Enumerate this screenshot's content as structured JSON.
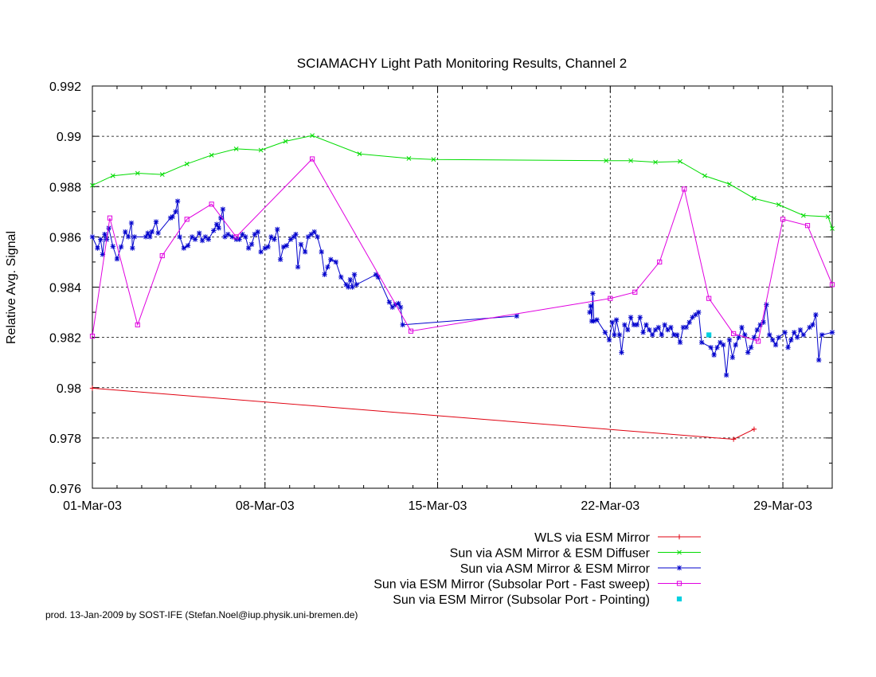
{
  "chart_data": {
    "type": "line",
    "title": "SCIAMACHY Light Path Monitoring Results, Channel 2",
    "xlabel": "",
    "ylabel": "Relative Avg. Signal",
    "x_unit": "date (2003)",
    "xlim": [
      "2003-03-01",
      "2003-03-31"
    ],
    "ylim": [
      0.976,
      0.992
    ],
    "x_ticks": [
      "01-Mar-03",
      "08-Mar-03",
      "15-Mar-03",
      "22-Mar-03",
      "29-Mar-03"
    ],
    "y_ticks": [
      "0.976",
      "0.978",
      "0.98",
      "0.982",
      "0.984",
      "0.986",
      "0.988",
      "0.99",
      "0.992"
    ],
    "grid": "dashed at labelled ticks",
    "legend_position": "below plot, right-aligned",
    "series": [
      {
        "name": "WLS via ESM Mirror",
        "color": "#e0000f",
        "marker": "plus",
        "points": [
          [
            "2003-03-01 00:00",
            0.97998
          ],
          [
            "2003-03-27 00:00",
            0.97795
          ],
          [
            "2003-03-27 20:00",
            0.97835
          ]
        ]
      },
      {
        "name": "Sun via ASM Mirror & ESM Diffuser",
        "color": "#00dc00",
        "marker": "cross",
        "points": [
          [
            "2003-03-01 00:00",
            0.98805
          ],
          [
            "2003-03-01 20:00",
            0.98843
          ],
          [
            "2003-03-02 20:00",
            0.98853
          ],
          [
            "2003-03-03 20:00",
            0.98848
          ],
          [
            "2003-03-04 20:00",
            0.9889
          ],
          [
            "2003-03-05 20:00",
            0.98925
          ],
          [
            "2003-03-06 20:00",
            0.9895
          ],
          [
            "2003-03-07 20:00",
            0.98945
          ],
          [
            "2003-03-08 20:00",
            0.9898
          ],
          [
            "2003-03-09 22:00",
            0.99003
          ],
          [
            "2003-03-11 20:00",
            0.9893
          ],
          [
            "2003-03-13 20:00",
            0.98912
          ],
          [
            "2003-03-14 20:00",
            0.98908
          ],
          [
            "2003-03-21 20:00",
            0.98903
          ],
          [
            "2003-03-22 20:00",
            0.98903
          ],
          [
            "2003-03-23 20:00",
            0.98897
          ],
          [
            "2003-03-24 20:00",
            0.989
          ],
          [
            "2003-03-25 20:00",
            0.98843
          ],
          [
            "2003-03-26 20:00",
            0.9881
          ],
          [
            "2003-03-27 20:00",
            0.98753
          ],
          [
            "2003-03-28 20:00",
            0.98728
          ],
          [
            "2003-03-29 20:00",
            0.98685
          ],
          [
            "2003-03-30 20:00",
            0.9868
          ],
          [
            "2003-03-31 00:00",
            0.98633
          ]
        ]
      },
      {
        "name": "Sun via ASM Mirror & ESM Mirror",
        "color": "#0000cc",
        "marker": "star",
        "points": [
          [
            "2003-03-01 00:00",
            0.986
          ],
          [
            "2003-03-01 05:00",
            0.98555
          ],
          [
            "2003-03-01 08:00",
            0.9859
          ],
          [
            "2003-03-01 10:00",
            0.9853
          ],
          [
            "2003-03-01 12:00",
            0.9861
          ],
          [
            "2003-03-01 14:00",
            0.9859
          ],
          [
            "2003-03-01 16:00",
            0.98635
          ],
          [
            "2003-03-01 20:00",
            0.98562
          ],
          [
            "2003-03-02 00:00",
            0.98512
          ],
          [
            "2003-03-02 04:00",
            0.9856
          ],
          [
            "2003-03-02 08:00",
            0.9862
          ],
          [
            "2003-03-02 11:00",
            0.986
          ],
          [
            "2003-03-02 14:00",
            0.98655
          ],
          [
            "2003-03-02 15:00",
            0.98555
          ],
          [
            "2003-03-02 17:00",
            0.986
          ],
          [
            "2003-03-03 04:00",
            0.986
          ],
          [
            "2003-03-03 06:00",
            0.98615
          ],
          [
            "2003-03-03 08:00",
            0.986
          ],
          [
            "2003-03-03 10:00",
            0.9862
          ],
          [
            "2003-03-03 14:00",
            0.9866
          ],
          [
            "2003-03-03 16:00",
            0.98615
          ],
          [
            "2003-03-04 04:00",
            0.98675
          ],
          [
            "2003-03-04 06:00",
            0.9868
          ],
          [
            "2003-03-04 09:00",
            0.987
          ],
          [
            "2003-03-04 11:00",
            0.98742
          ],
          [
            "2003-03-04 13:00",
            0.986
          ],
          [
            "2003-03-04 17:00",
            0.98555
          ],
          [
            "2003-03-04 21:00",
            0.98565
          ],
          [
            "2003-03-05 01:00",
            0.986
          ],
          [
            "2003-03-05 04:00",
            0.9859
          ],
          [
            "2003-03-05 08:00",
            0.98615
          ],
          [
            "2003-03-05 11:00",
            0.98585
          ],
          [
            "2003-03-05 14:00",
            0.986
          ],
          [
            "2003-03-05 17:00",
            0.9859
          ],
          [
            "2003-03-05 22:00",
            0.98625
          ],
          [
            "2003-03-06 01:00",
            0.9865
          ],
          [
            "2003-03-06 03:00",
            0.98635
          ],
          [
            "2003-03-06 05:00",
            0.98675
          ],
          [
            "2003-03-06 07:00",
            0.9871
          ],
          [
            "2003-03-06 09:00",
            0.986
          ],
          [
            "2003-03-06 12:00",
            0.9861
          ],
          [
            "2003-03-06 16:00",
            0.986
          ],
          [
            "2003-03-06 20:00",
            0.9859
          ],
          [
            "2003-03-06 23:00",
            0.9859
          ],
          [
            "2003-03-07 02:00",
            0.9861
          ],
          [
            "2003-03-07 05:00",
            0.986
          ],
          [
            "2003-03-07 08:00",
            0.98555
          ],
          [
            "2003-03-07 11:00",
            0.9857
          ],
          [
            "2003-03-07 14:00",
            0.9861
          ],
          [
            "2003-03-07 17:00",
            0.9862
          ],
          [
            "2003-03-07 20:00",
            0.9854
          ],
          [
            "2003-03-08 00:00",
            0.98555
          ],
          [
            "2003-03-08 03:00",
            0.9856
          ],
          [
            "2003-03-08 06:00",
            0.986
          ],
          [
            "2003-03-08 09:00",
            0.9859
          ],
          [
            "2003-03-08 12:00",
            0.9863
          ],
          [
            "2003-03-08 15:00",
            0.9851
          ],
          [
            "2003-03-08 18:00",
            0.9856
          ],
          [
            "2003-03-08 21:00",
            0.98565
          ],
          [
            "2003-03-09 01:00",
            0.9859
          ],
          [
            "2003-03-09 04:00",
            0.986
          ],
          [
            "2003-03-09 06:00",
            0.9861
          ],
          [
            "2003-03-09 08:00",
            0.9848
          ],
          [
            "2003-03-09 11:00",
            0.9857
          ],
          [
            "2003-03-09 15:00",
            0.9854
          ],
          [
            "2003-03-09 18:00",
            0.986
          ],
          [
            "2003-03-09 21:00",
            0.9861
          ],
          [
            "2003-03-10 00:00",
            0.9862
          ],
          [
            "2003-03-10 03:00",
            0.986
          ],
          [
            "2003-03-10 07:00",
            0.9854
          ],
          [
            "2003-03-10 10:00",
            0.9845
          ],
          [
            "2003-03-10 13:00",
            0.9848
          ],
          [
            "2003-03-10 16:00",
            0.9851
          ],
          [
            "2003-03-10 21:00",
            0.985
          ],
          [
            "2003-03-11 02:00",
            0.9844
          ],
          [
            "2003-03-11 07:00",
            0.9841
          ],
          [
            "2003-03-11 09:00",
            0.984
          ],
          [
            "2003-03-11 11:00",
            0.9843
          ],
          [
            "2003-03-11 13:00",
            0.984
          ],
          [
            "2003-03-11 15:00",
            0.9845
          ],
          [
            "2003-03-11 17:00",
            0.9841
          ],
          [
            "2003-03-12 12:00",
            0.9845
          ],
          [
            "2003-03-12 14:00",
            0.9844
          ],
          [
            "2003-03-13 01:00",
            0.9834
          ],
          [
            "2003-03-13 04:00",
            0.9832
          ],
          [
            "2003-03-13 07:00",
            0.9833
          ],
          [
            "2003-03-13 10:00",
            0.98335
          ],
          [
            "2003-03-13 12:00",
            0.9832
          ],
          [
            "2003-03-13 14:00",
            0.9825
          ],
          [
            "2003-03-18 05:00",
            0.98285
          ]
        ],
        "gap_after_index": 95,
        "points_after_gap": [
          [
            "2003-03-21 04:00",
            0.983
          ],
          [
            "2003-03-21 05:00",
            0.98325
          ],
          [
            "2003-03-21 06:00",
            0.98265
          ],
          [
            "2003-03-21 07:00",
            0.98375
          ],
          [
            "2003-03-21 08:00",
            0.98265
          ],
          [
            "2003-03-21 11:00",
            0.9827
          ],
          [
            "2003-03-21 19:00",
            0.9822
          ],
          [
            "2003-03-21 23:00",
            0.9819
          ],
          [
            "2003-03-22 02:00",
            0.9826
          ],
          [
            "2003-03-22 04:00",
            0.9821
          ],
          [
            "2003-03-22 06:00",
            0.9827
          ],
          [
            "2003-03-22 09:00",
            0.9821
          ],
          [
            "2003-03-22 11:00",
            0.9814
          ],
          [
            "2003-03-22 14:00",
            0.9825
          ],
          [
            "2003-03-22 17:00",
            0.9823
          ],
          [
            "2003-03-22 20:00",
            0.9828
          ],
          [
            "2003-03-22 23:00",
            0.9825
          ],
          [
            "2003-03-23 02:00",
            0.9825
          ],
          [
            "2003-03-23 05:00",
            0.9828
          ],
          [
            "2003-03-23 08:00",
            0.9822
          ],
          [
            "2003-03-23 11:00",
            0.9825
          ],
          [
            "2003-03-23 14:00",
            0.9823
          ],
          [
            "2003-03-23 17:00",
            0.9821
          ],
          [
            "2003-03-23 20:00",
            0.9823
          ],
          [
            "2003-03-23 23:00",
            0.9824
          ],
          [
            "2003-03-24 02:00",
            0.9821
          ],
          [
            "2003-03-24 05:00",
            0.9825
          ],
          [
            "2003-03-24 08:00",
            0.9823
          ],
          [
            "2003-03-24 11:00",
            0.9824
          ],
          [
            "2003-03-24 14:00",
            0.9821
          ],
          [
            "2003-03-24 17:00",
            0.9821
          ],
          [
            "2003-03-24 20:00",
            0.9818
          ],
          [
            "2003-03-24 23:00",
            0.9824
          ],
          [
            "2003-03-25 02:00",
            0.9824
          ],
          [
            "2003-03-25 05:00",
            0.9826
          ],
          [
            "2003-03-25 08:00",
            0.9828
          ],
          [
            "2003-03-25 11:00",
            0.9829
          ],
          [
            "2003-03-25 14:00",
            0.983
          ],
          [
            "2003-03-25 17:00",
            0.9818
          ],
          [
            "2003-03-26 02:00",
            0.9816
          ],
          [
            "2003-03-26 05:00",
            0.9813
          ],
          [
            "2003-03-26 08:00",
            0.9816
          ],
          [
            "2003-03-26 11:00",
            0.9818
          ],
          [
            "2003-03-26 14:00",
            0.9817
          ],
          [
            "2003-03-26 17:00",
            0.9805
          ],
          [
            "2003-03-26 20:00",
            0.9819
          ],
          [
            "2003-03-26 23:00",
            0.9812
          ],
          [
            "2003-03-27 02:00",
            0.9817
          ],
          [
            "2003-03-27 05:00",
            0.982
          ],
          [
            "2003-03-27 08:00",
            0.9824
          ],
          [
            "2003-03-27 11:00",
            0.9821
          ],
          [
            "2003-03-27 14:00",
            0.9814
          ],
          [
            "2003-03-27 17:00",
            0.9816
          ],
          [
            "2003-03-27 20:00",
            0.982
          ],
          [
            "2003-03-27 23:00",
            0.9823
          ],
          [
            "2003-03-28 02:00",
            0.9825
          ],
          [
            "2003-03-28 05:00",
            0.9826
          ],
          [
            "2003-03-28 08:00",
            0.9833
          ],
          [
            "2003-03-28 11:00",
            0.9821
          ],
          [
            "2003-03-28 14:00",
            0.9819
          ],
          [
            "2003-03-28 17:00",
            0.9817
          ],
          [
            "2003-03-28 20:00",
            0.982
          ],
          [
            "2003-03-29 02:00",
            0.9822
          ],
          [
            "2003-03-29 05:00",
            0.9816
          ],
          [
            "2003-03-29 08:00",
            0.9819
          ],
          [
            "2003-03-29 11:00",
            0.9822
          ],
          [
            "2003-03-29 14:00",
            0.982
          ],
          [
            "2003-03-29 17:00",
            0.9823
          ],
          [
            "2003-03-29 20:00",
            0.9821
          ],
          [
            "2003-03-30 02:00",
            0.9824
          ],
          [
            "2003-03-30 05:00",
            0.9825
          ],
          [
            "2003-03-30 08:00",
            0.9829
          ],
          [
            "2003-03-30 11:00",
            0.9811
          ],
          [
            "2003-03-30 14:00",
            0.9821
          ],
          [
            "2003-03-31 00:00",
            0.9822
          ]
        ]
      },
      {
        "name": "Sun via ESM Mirror (Subsolar Port - Fast sweep)",
        "color": "#e000e0",
        "marker": "open-square",
        "points": [
          [
            "2003-03-01 00:00",
            0.98205
          ],
          [
            "2003-03-01 17:00",
            0.98675
          ],
          [
            "2003-03-02 20:00",
            0.9825
          ],
          [
            "2003-03-03 20:00",
            0.98525
          ],
          [
            "2003-03-04 20:00",
            0.9867
          ],
          [
            "2003-03-05 20:00",
            0.9873
          ],
          [
            "2003-03-06 20:00",
            0.986
          ],
          [
            "2003-03-09 22:00",
            0.9891
          ],
          [
            "2003-03-13 22:00",
            0.98225
          ],
          [
            "2003-03-22 00:00",
            0.98355
          ],
          [
            "2003-03-23 00:00",
            0.9838
          ],
          [
            "2003-03-24 00:00",
            0.985
          ],
          [
            "2003-03-25 00:00",
            0.9879
          ],
          [
            "2003-03-26 00:00",
            0.98355
          ],
          [
            "2003-03-27 00:00",
            0.98215
          ],
          [
            "2003-03-28 00:00",
            0.98185
          ],
          [
            "2003-03-29 00:00",
            0.9867
          ],
          [
            "2003-03-30 00:00",
            0.98645
          ],
          [
            "2003-03-31 00:00",
            0.9841
          ]
        ]
      },
      {
        "name": "Sun via ESM Mirror (Subsolar Port - Pointing)",
        "color": "#00d0e0",
        "marker": "filled-square",
        "points": [
          [
            "2003-03-26 00:00",
            0.9821
          ]
        ]
      }
    ]
  },
  "footer": "prod. 13-Jan-2009 by SOST-IFE (Stefan.Noel@iup.physik.uni-bremen.de)"
}
